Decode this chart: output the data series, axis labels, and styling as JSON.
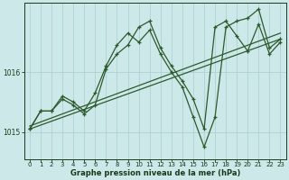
{
  "xlabel": "Graphe pression niveau de la mer (hPa)",
  "bg_color": "#cce8e8",
  "line_color": "#2d5a2d",
  "grid_color": "#aacece",
  "axis_label_color": "#1a3a1a",
  "yticks": [
    1015,
    1016
  ],
  "ylim": [
    1014.55,
    1017.15
  ],
  "xlim": [
    -0.5,
    23.5
  ],
  "xticks": [
    0,
    1,
    2,
    3,
    4,
    5,
    6,
    7,
    8,
    9,
    10,
    11,
    12,
    13,
    14,
    15,
    16,
    17,
    18,
    19,
    20,
    21,
    22,
    23
  ],
  "series1": [
    1015.05,
    1015.35,
    1015.35,
    1015.55,
    1015.45,
    1015.3,
    1015.45,
    1016.05,
    1016.3,
    1016.45,
    1016.75,
    1016.85,
    1016.4,
    1016.1,
    1015.85,
    1015.55,
    1015.05,
    1016.75,
    1016.85,
    1016.6,
    1016.35,
    1016.8,
    1016.3,
    1016.5
  ],
  "series2": [
    1015.05,
    1015.35,
    1015.35,
    1015.6,
    1015.5,
    1015.35,
    1015.65,
    1016.1,
    1016.45,
    1016.65,
    1016.5,
    1016.7,
    1016.3,
    1016.0,
    1015.75,
    1015.25,
    1014.75,
    1015.25,
    1016.75,
    1016.85,
    1016.9,
    1017.05,
    1016.4,
    1016.55
  ],
  "trend1_x": [
    0,
    23
  ],
  "trend1_y": [
    1015.05,
    1016.55
  ],
  "trend2_x": [
    0,
    23
  ],
  "trend2_y": [
    1015.1,
    1016.65
  ]
}
